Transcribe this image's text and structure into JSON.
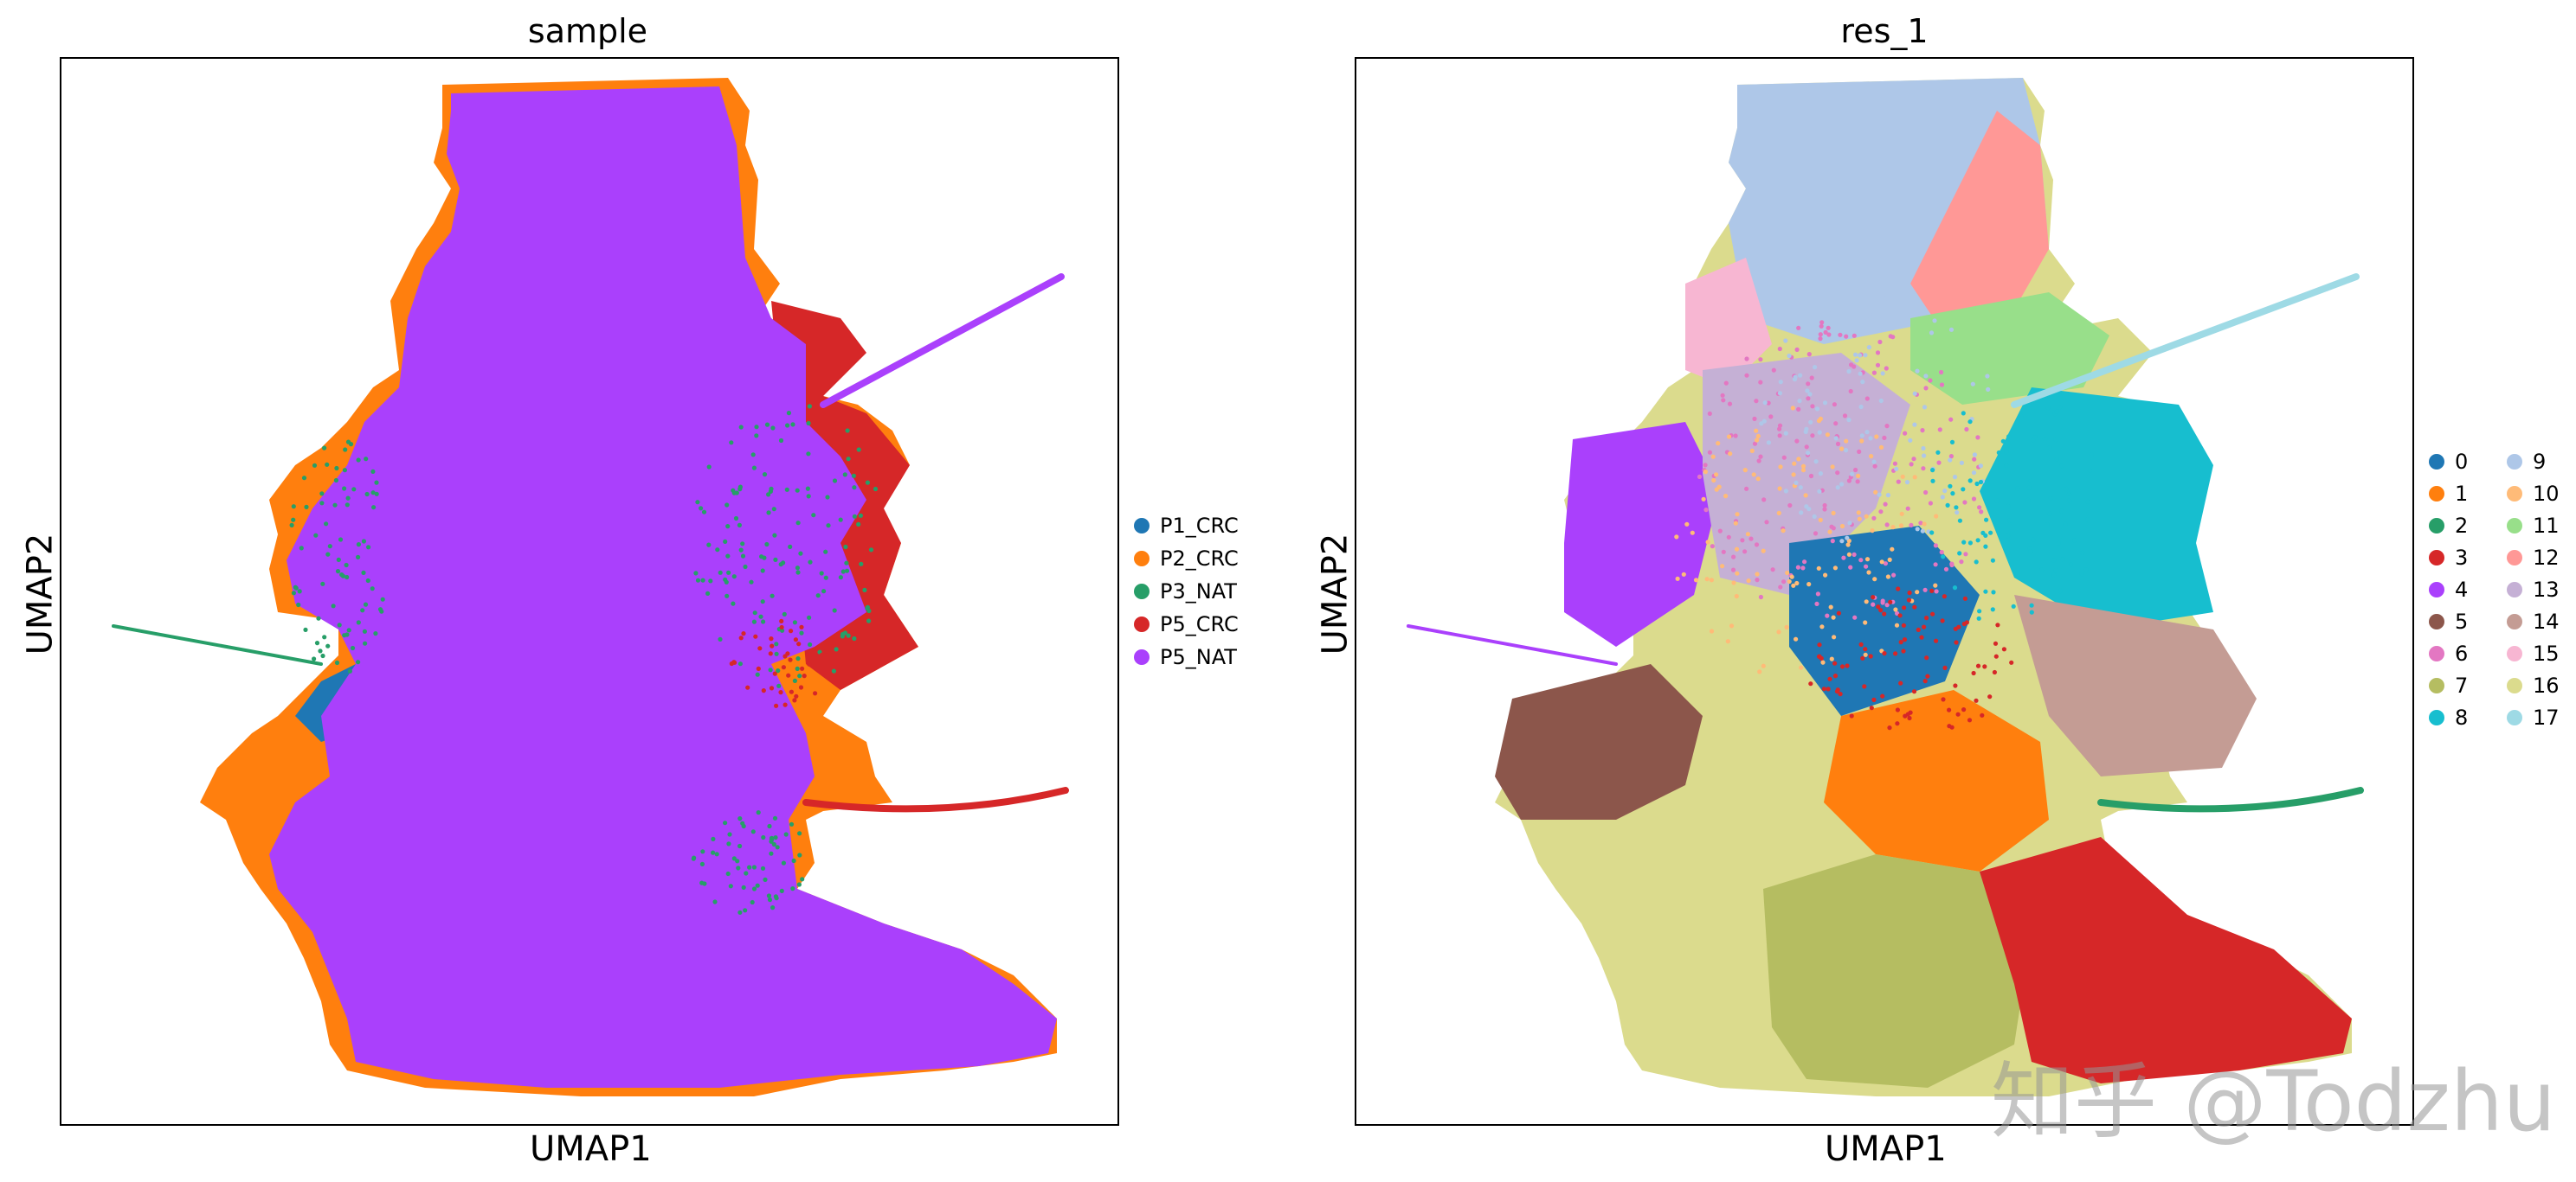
{
  "chart_data": [
    {
      "type": "scatter",
      "title": "sample",
      "xlabel": "UMAP1",
      "ylabel": "UMAP2",
      "grid": false,
      "legend_position": "right",
      "colors": {
        "P1_CRC": "#1f77b4",
        "P2_CRC": "#ff7f0e",
        "P3_NAT": "#279e68",
        "P5_CRC": "#d62728",
        "P5_NAT": "#aa40fc"
      },
      "legend": [
        {
          "label": "P1_CRC",
          "color": "#1f77b4"
        },
        {
          "label": "P2_CRC",
          "color": "#ff7f0e"
        },
        {
          "label": "P3_NAT",
          "color": "#279e68"
        },
        {
          "label": "P5_CRC",
          "color": "#d62728"
        },
        {
          "label": "P5_NAT",
          "color": "#aa40fc"
        }
      ]
    },
    {
      "type": "scatter",
      "title": "res_1",
      "xlabel": "UMAP1",
      "ylabel": "UMAP2",
      "grid": false,
      "legend_position": "right",
      "legend": [
        {
          "label": "0",
          "color": "#1f77b4"
        },
        {
          "label": "1",
          "color": "#ff7f0e"
        },
        {
          "label": "2",
          "color": "#279e68"
        },
        {
          "label": "3",
          "color": "#d62728"
        },
        {
          "label": "4",
          "color": "#aa40fc"
        },
        {
          "label": "5",
          "color": "#8c564b"
        },
        {
          "label": "6",
          "color": "#e377c2"
        },
        {
          "label": "7",
          "color": "#b5bd61"
        },
        {
          "label": "8",
          "color": "#17becf"
        },
        {
          "label": "9",
          "color": "#aec7e8"
        },
        {
          "label": "10",
          "color": "#ffbb78"
        },
        {
          "label": "11",
          "color": "#98df8a"
        },
        {
          "label": "12",
          "color": "#ff9896"
        },
        {
          "label": "13",
          "color": "#c5b0d5"
        },
        {
          "label": "14",
          "color": "#c49c94"
        },
        {
          "label": "15",
          "color": "#f7b6d2"
        },
        {
          "label": "16",
          "color": "#dbdb8d"
        },
        {
          "label": "17",
          "color": "#9edae5"
        }
      ]
    }
  ],
  "watermark": "知乎 @Todzhu"
}
